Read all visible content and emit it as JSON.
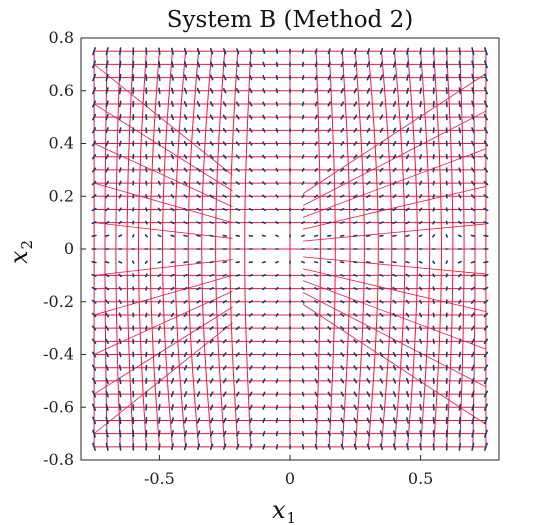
{
  "chart_data": {
    "type": "vector-field-grid",
    "title": "System B (Method 2)",
    "xlabel": "x",
    "xlabel_sub": "1",
    "ylabel": "x",
    "ylabel_sub": "2",
    "xlim": [
      -0.8,
      0.8
    ],
    "ylim": [
      -0.8,
      0.8
    ],
    "xticks": [
      -0.5,
      0,
      0.5
    ],
    "xtick_labels": [
      "-0.5",
      "0",
      "0.5"
    ],
    "yticks": [
      -0.8,
      -0.6,
      -0.4,
      -0.2,
      0,
      0.2,
      0.4,
      0.6,
      0.8
    ],
    "ytick_labels": [
      "-0.8",
      "-0.6",
      "-0.4",
      "-0.2",
      "0",
      "0.2",
      "0.4",
      "0.6",
      "0.8"
    ],
    "grid": false,
    "series": [
      {
        "kind": "grid-mesh",
        "color": "#e8173f",
        "x": [
          -0.75,
          0.75
        ],
        "y": [
          -0.75,
          0.75
        ],
        "row_x": [
          -0.75,
          -0.7,
          -0.65,
          -0.6,
          -0.55,
          -0.5,
          -0.45,
          -0.4,
          -0.35,
          -0.3,
          -0.25,
          -0.2,
          -0.15,
          0,
          0.1,
          0.15,
          0.2,
          0.25,
          0.3,
          0.35,
          0.4,
          0.45,
          0.5,
          0.55,
          0.6,
          0.65,
          0.7,
          0.75
        ],
        "col_y": [
          -0.75,
          -0.7,
          -0.65,
          -0.6,
          -0.55,
          -0.5,
          -0.45,
          -0.4,
          -0.35,
          -0.3,
          -0.25,
          -0.2,
          -0.15,
          -0.1,
          0,
          0.1,
          0.15,
          0.2,
          0.25,
          0.3,
          0.35,
          0.4,
          0.45,
          0.5,
          0.55,
          0.6,
          0.65,
          0.7,
          0.75
        ]
      },
      {
        "kind": "quiver",
        "color": "#1a3a73",
        "x_range": [
          -0.75,
          0.75
        ],
        "y_range": [
          -0.75,
          0.75
        ],
        "step": 0.05
      }
    ]
  }
}
